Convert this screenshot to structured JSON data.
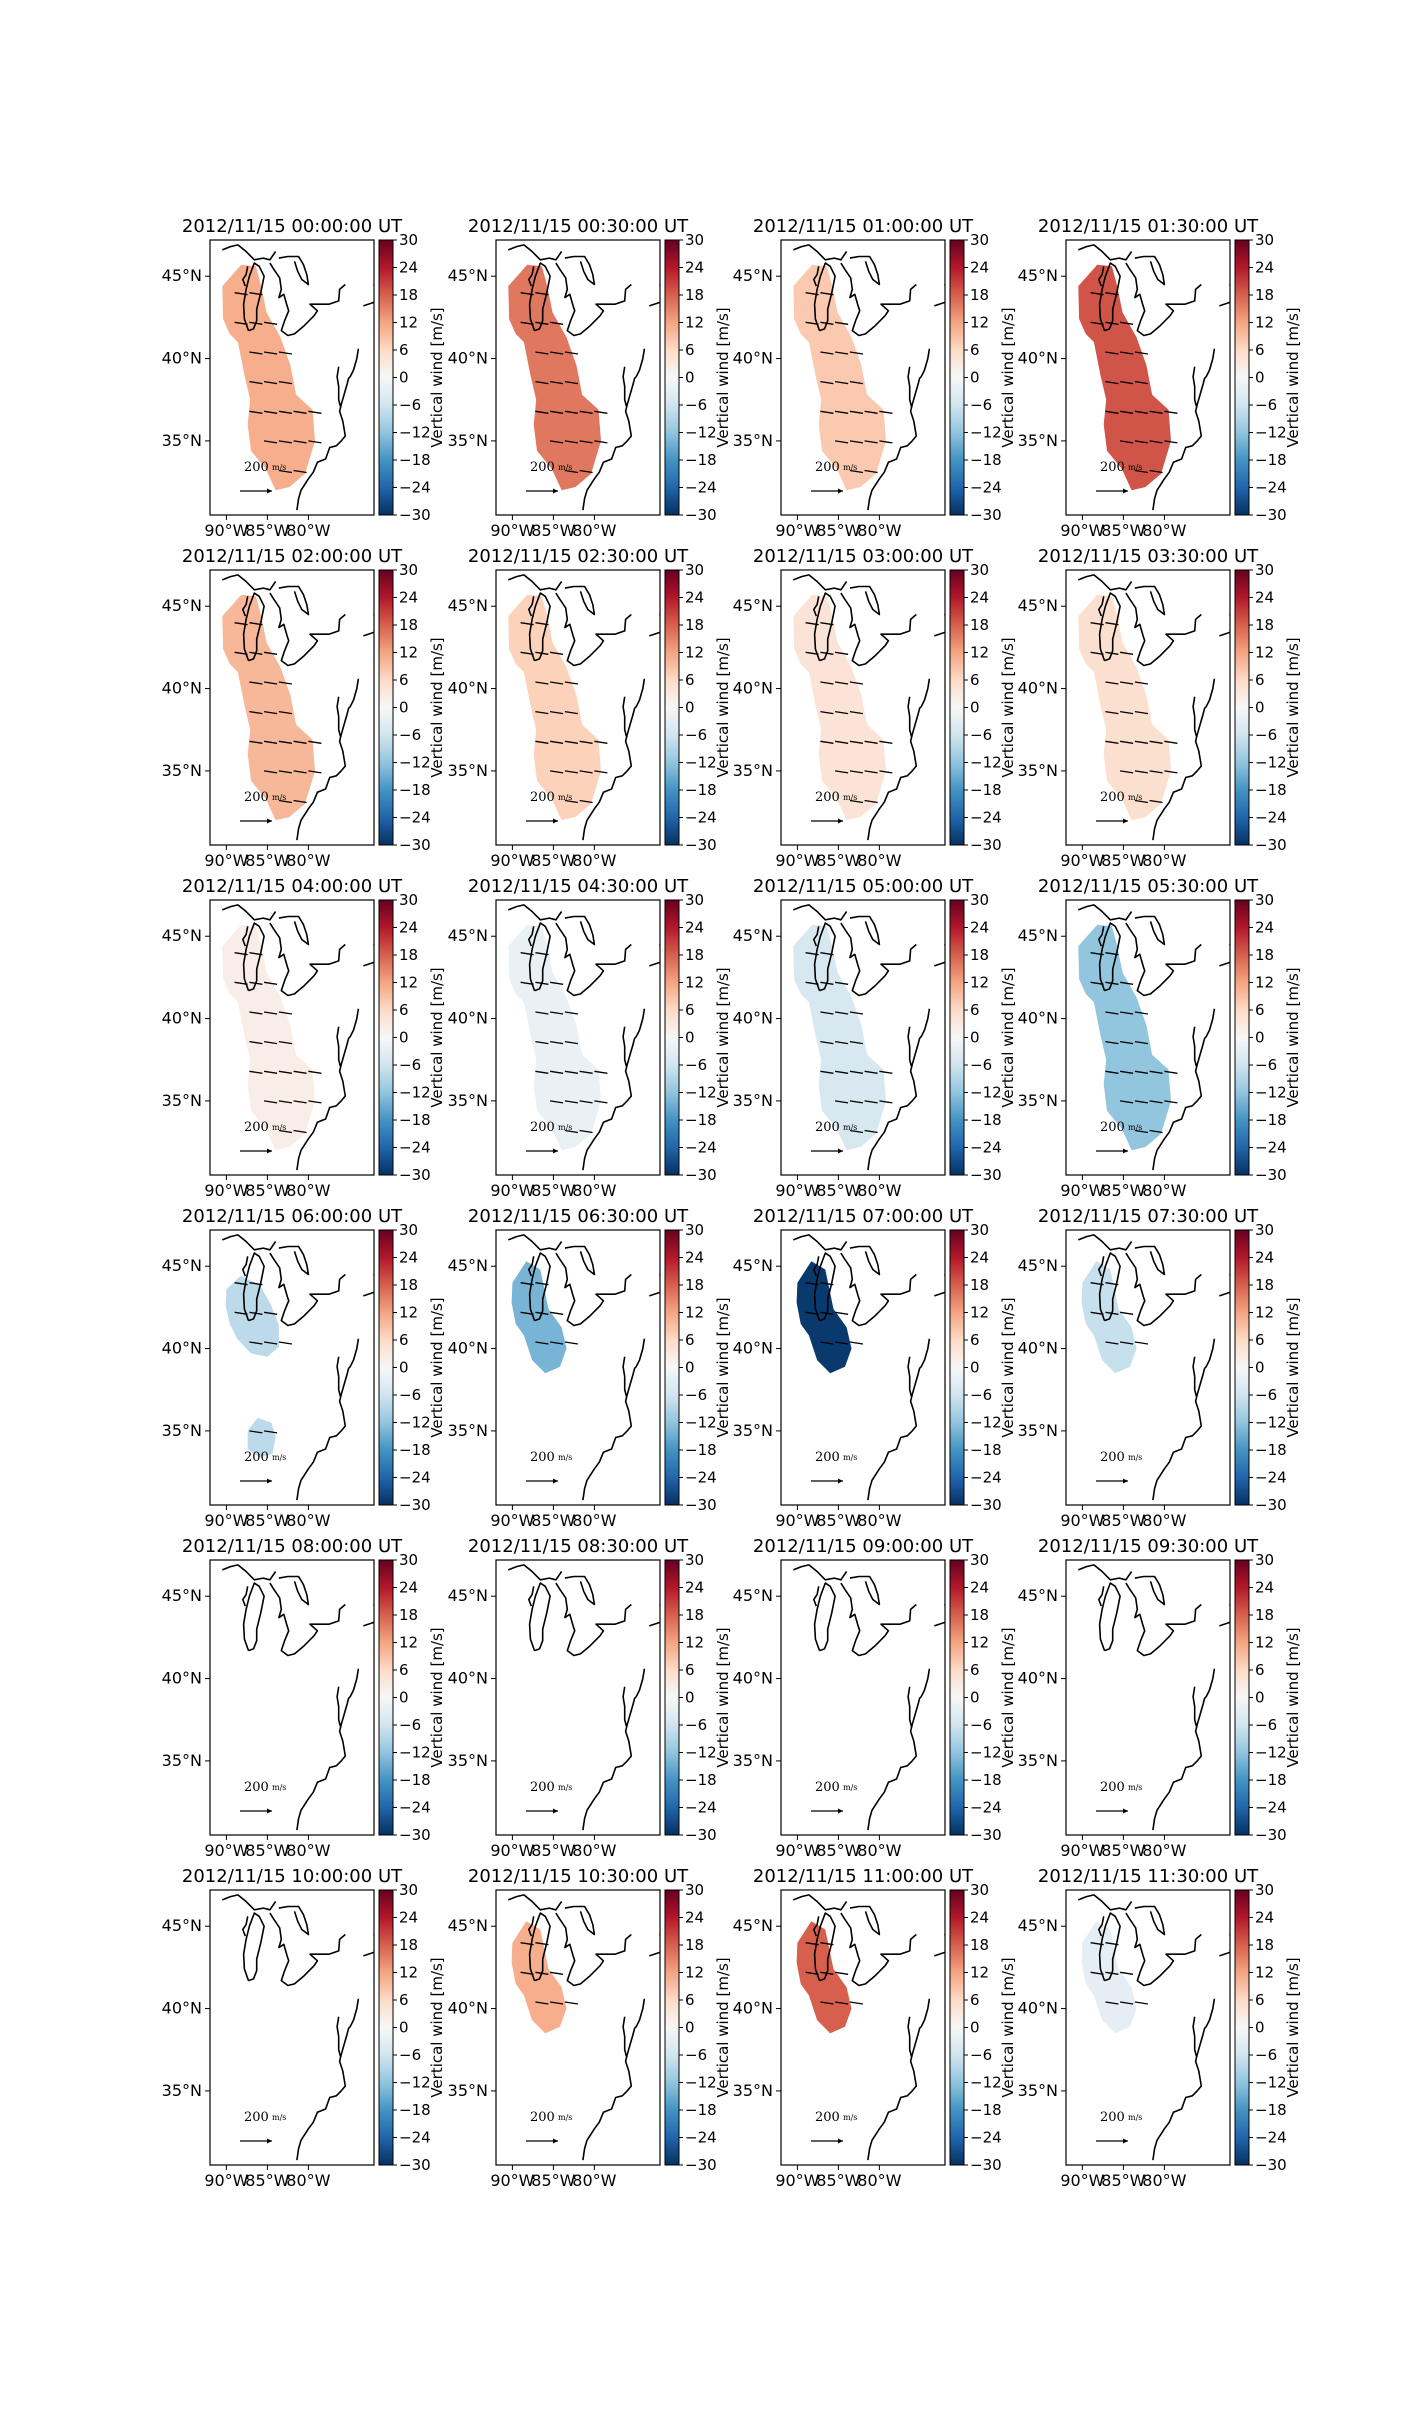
{
  "colorbar": {
    "label": "Vertical wind [m/s]",
    "ticks": [
      "30",
      "24",
      "18",
      "12",
      "6",
      "0",
      "−6",
      "−12",
      "−18",
      "−24",
      "−30"
    ],
    "cmap": [
      "#053061",
      "#2166ac",
      "#4393c3",
      "#92c5de",
      "#d1e5f0",
      "#f7f7f7",
      "#fddbc7",
      "#f4a582",
      "#d6604d",
      "#b2182b",
      "#67001f"
    ]
  },
  "axes": {
    "x_ticks": [
      "90°W",
      "85°W",
      "80°W"
    ],
    "y_ticks": [
      "45°N",
      "40°N",
      "35°N"
    ]
  },
  "scale_label": "200",
  "scale_unit": "m/s",
  "panels": [
    {
      "title": "2012/11/15 00:00:00 UT",
      "value": 11,
      "region": "full"
    },
    {
      "title": "2012/11/15 00:30:00 UT",
      "value": 16,
      "region": "full"
    },
    {
      "title": "2012/11/15 01:00:00 UT",
      "value": 8,
      "region": "full"
    },
    {
      "title": "2012/11/15 01:30:00 UT",
      "value": 19,
      "region": "full"
    },
    {
      "title": "2012/11/15 02:00:00 UT",
      "value": 10,
      "region": "full"
    },
    {
      "title": "2012/11/15 02:30:00 UT",
      "value": 7,
      "region": "full"
    },
    {
      "title": "2012/11/15 03:00:00 UT",
      "value": 4,
      "region": "full"
    },
    {
      "title": "2012/11/15 03:30:00 UT",
      "value": 5,
      "region": "full"
    },
    {
      "title": "2012/11/15 04:00:00 UT",
      "value": 2,
      "region": "full"
    },
    {
      "title": "2012/11/15 04:30:00 UT",
      "value": -2,
      "region": "full"
    },
    {
      "title": "2012/11/15 05:00:00 UT",
      "value": -5,
      "region": "full"
    },
    {
      "title": "2012/11/15 05:30:00 UT",
      "value": -12,
      "region": "full"
    },
    {
      "title": "2012/11/15 06:00:00 UT",
      "value": -8,
      "region": "split"
    },
    {
      "title": "2012/11/15 06:30:00 UT",
      "value": -14,
      "region": "north"
    },
    {
      "title": "2012/11/15 07:00:00 UT",
      "value": -29,
      "region": "north"
    },
    {
      "title": "2012/11/15 07:30:00 UT",
      "value": -7,
      "region": "north"
    },
    {
      "title": "2012/11/15 08:00:00 UT",
      "value": null,
      "region": "none"
    },
    {
      "title": "2012/11/15 08:30:00 UT",
      "value": null,
      "region": "none"
    },
    {
      "title": "2012/11/15 09:00:00 UT",
      "value": null,
      "region": "none"
    },
    {
      "title": "2012/11/15 09:30:00 UT",
      "value": null,
      "region": "none"
    },
    {
      "title": "2012/11/15 10:00:00 UT",
      "value": null,
      "region": "none"
    },
    {
      "title": "2012/11/15 10:30:00 UT",
      "value": 11,
      "region": "north"
    },
    {
      "title": "2012/11/15 11:00:00 UT",
      "value": 18,
      "region": "north"
    },
    {
      "title": "2012/11/15 11:30:00 UT",
      "value": -3,
      "region": "north"
    }
  ]
}
